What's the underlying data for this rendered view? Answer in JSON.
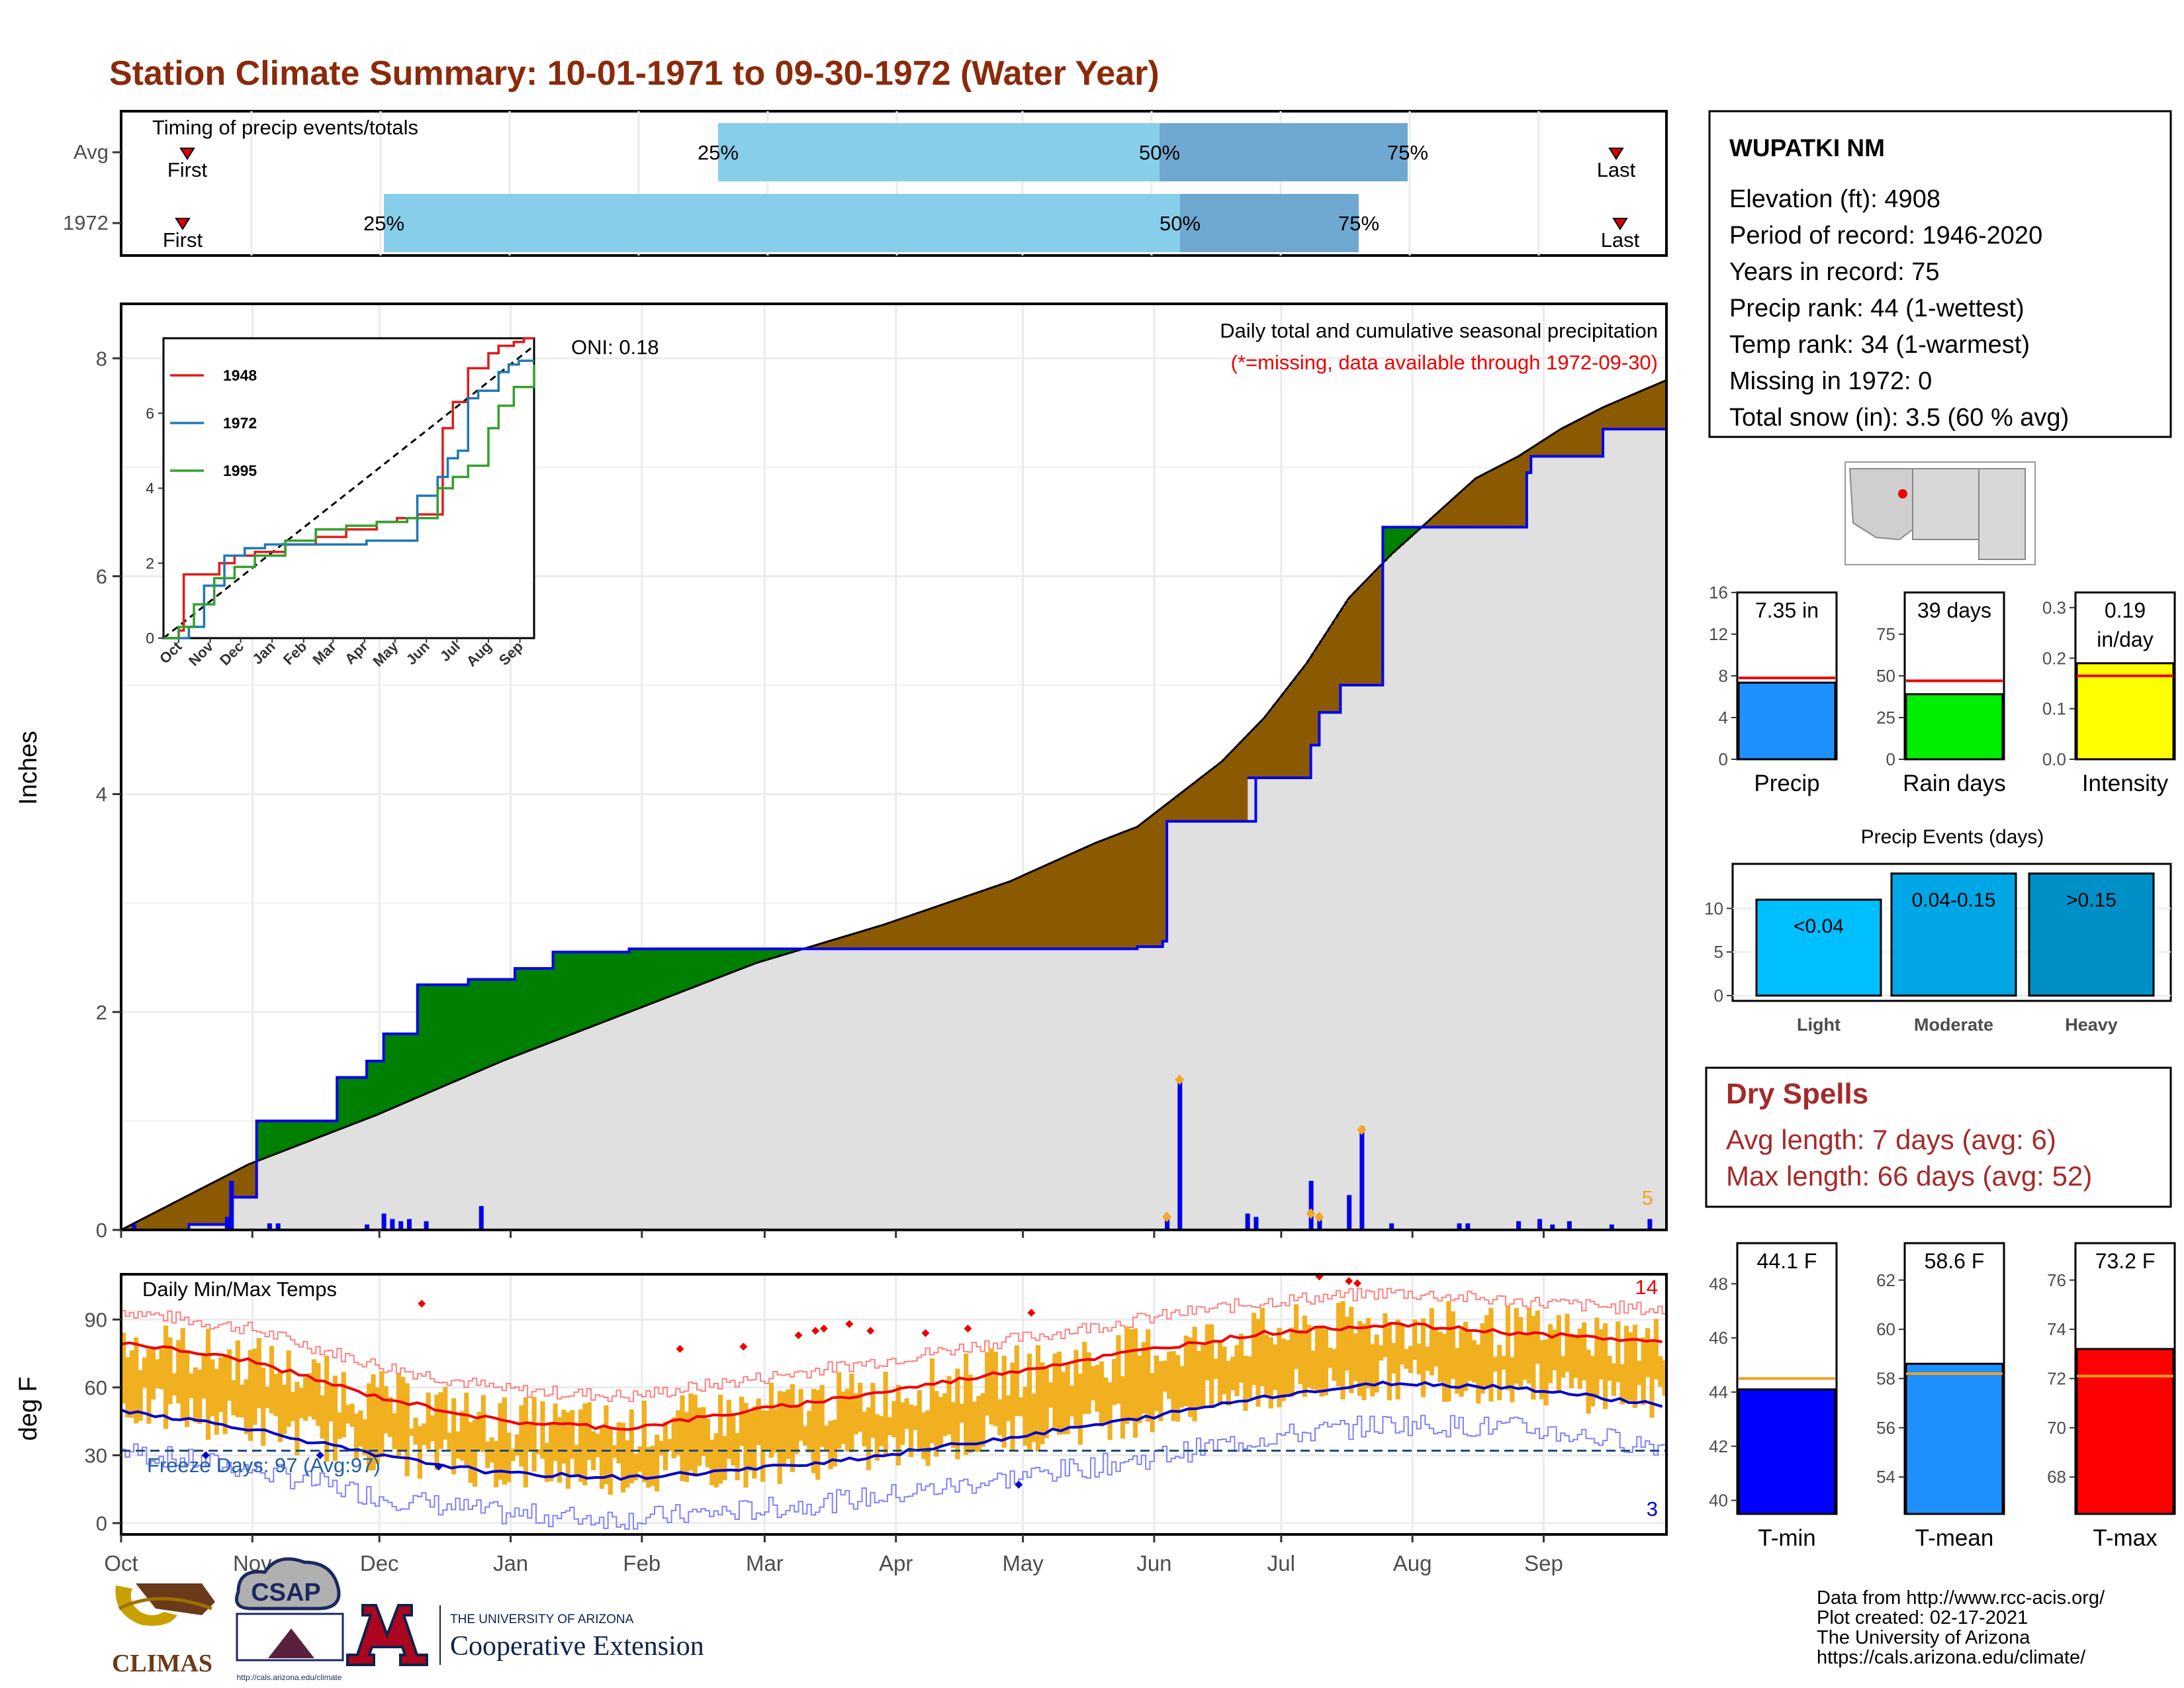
{
  "title": "Station Climate Summary: 10-01-1971 to 09-30-1972 (Water Year)",
  "colors": {
    "title": "#8b2a0a",
    "light_blue": "#87ceeb",
    "mid_blue": "#6fa8d0",
    "green": "#008000",
    "brown": "#8b5a00",
    "gray": "#e0e0e0",
    "blue": "#0000ee",
    "red": "#ee0000",
    "orange": "#f5a623",
    "dry": "#a52a2a"
  },
  "timing": {
    "label": "Timing of precip events/totals",
    "rows": [
      {
        "name": "Avg",
        "first": "First",
        "last": "Last",
        "p25": "25%",
        "p50": "50%",
        "p75": "75%"
      },
      {
        "name": "1972",
        "first": "First",
        "last": "Last",
        "p25": "25%",
        "p50": "50%",
        "p75": "75%"
      }
    ]
  },
  "main": {
    "ylabel": "Inches",
    "yticks": [
      "0",
      "2",
      "4",
      "6",
      "8"
    ],
    "oni": "ONI: 0.18",
    "subtitle": "Daily total and cumulative seasonal precipitation",
    "missing_note": "(*=missing, data available through 1972-09-30)",
    "corner_count": "5",
    "inset": {
      "series": [
        "1948",
        "1972",
        "1995"
      ],
      "yticks": [
        "0",
        "2",
        "4",
        "6"
      ],
      "months": [
        "Oct",
        "Nov",
        "Dec",
        "Jan",
        "Feb",
        "Mar",
        "Apr",
        "May",
        "Jun",
        "Jul",
        "Aug",
        "Sep"
      ]
    }
  },
  "temps": {
    "ylabel": "deg F",
    "label": "Daily Min/Max Temps",
    "yticks": [
      "0",
      "30",
      "60",
      "90"
    ],
    "freeze": "Freeze Days: 97 (Avg:97)",
    "max_count": "14",
    "min_count": "3",
    "months": [
      "Oct",
      "Nov",
      "Dec",
      "Jan",
      "Feb",
      "Mar",
      "Apr",
      "May",
      "Jun",
      "Jul",
      "Aug",
      "Sep"
    ]
  },
  "station": {
    "name": "WUPATKI NM",
    "lines": [
      "Elevation (ft): 4908",
      "Period of record: 1946-2020",
      "Years in record: 75",
      "Precip rank: 44 (1-wettest)",
      "Temp rank: 34 (1-warmest)",
      "Missing in 1972: 0",
      "Total snow (in): 3.5 (60 % avg)"
    ]
  },
  "bars": {
    "precip": {
      "label": "Precip",
      "value_text": "7.35 in",
      "yticks": [
        "0",
        "4",
        "8",
        "12",
        "16"
      ]
    },
    "rain": {
      "label": "Rain days",
      "value_text": "39 days",
      "yticks": [
        "0",
        "25",
        "50",
        "75"
      ]
    },
    "intensity": {
      "label": "Intensity",
      "value_text_1": "0.19",
      "value_text_2": "in/day",
      "yticks": [
        "0.0",
        "0.1",
        "0.2",
        "0.3"
      ]
    }
  },
  "events": {
    "title": "Precip Events (days)",
    "yticks": [
      "0",
      "5",
      "10"
    ],
    "bars": [
      {
        "label": "Light",
        "range": "<0.04"
      },
      {
        "label": "Moderate",
        "range": "0.04-0.15"
      },
      {
        "label": "Heavy",
        "range": ">0.15"
      }
    ]
  },
  "dry": {
    "title": "Dry Spells",
    "avg": "Avg length: 7 days (avg: 6)",
    "max": "Max length: 66 days (avg: 52)"
  },
  "tbars": {
    "tmin": {
      "label": "T-min",
      "value_text": "44.1 F",
      "yticks": [
        "40",
        "42",
        "44",
        "46",
        "48"
      ]
    },
    "tmean": {
      "label": "T-mean",
      "value_text": "58.6 F",
      "yticks": [
        "54",
        "56",
        "58",
        "60",
        "62"
      ]
    },
    "tmax": {
      "label": "T-max",
      "value_text": "73.2 F",
      "yticks": [
        "68",
        "70",
        "72",
        "74",
        "76"
      ]
    }
  },
  "footer": {
    "lines": [
      "Data from http://www.rcc-acis.org/",
      "Plot created: 02-17-2021",
      "The University of Arizona",
      "https://cals.arizona.edu/climate/"
    ],
    "logos": {
      "climas": "CLIMAS",
      "csap": "CSAP",
      "csap_url": "http://cals.arizona.edu/climate",
      "ua_small": "THE UNIVERSITY OF ARIZONA",
      "ua_big": "Cooperative Extension"
    }
  },
  "chart_data": [
    {
      "type": "bar",
      "name": "timing",
      "categories": [
        "Avg",
        "1972"
      ],
      "series": [
        {
          "name": "25%",
          "values": [
            "Feb 20",
            "Dec 1"
          ]
        },
        {
          "name": "50%",
          "values": [
            "Jun 1",
            "Jun 7"
          ]
        },
        {
          "name": "75%",
          "values": [
            "Jul 31",
            "Jul 19"
          ]
        }
      ]
    },
    {
      "type": "area",
      "name": "cumulative_precip",
      "xlabel": "",
      "ylabel": "Inches",
      "ylim": [
        0,
        8.5
      ],
      "series": [
        {
          "name": "1972",
          "x": [
            0,
            16,
            25,
            26,
            32,
            51,
            57,
            58,
            62,
            70,
            82,
            93,
            102,
            112,
            120,
            130,
            142,
            160,
            190,
            215,
            225,
            235,
            240,
            242,
            246,
            247,
            268,
            266,
            281,
            283,
            284,
            288,
            290,
            298,
            302,
            305,
            332,
            333,
            340,
            350,
            365
          ],
          "y": [
            0,
            0.05,
            0.1,
            0.3,
            1.0,
            1.4,
            1.4,
            1.55,
            1.8,
            2.25,
            2.3,
            2.4,
            2.55,
            2.55,
            2.58,
            2.58,
            2.58,
            2.58,
            2.58,
            2.58,
            2.58,
            2.58,
            2.6,
            2.6,
            2.65,
            3.75,
            4.15,
            4.15,
            4.45,
            4.75,
            4.75,
            5.0,
            5.0,
            6.45,
            6.45,
            6.45,
            6.95,
            7.1,
            7.1,
            7.35,
            7.35
          ]
        },
        {
          "name": "Avg",
          "x": [
            0,
            30,
            60,
            90,
            120,
            150,
            180,
            210,
            230,
            240,
            250,
            260,
            270,
            280,
            290,
            300,
            310,
            320,
            330,
            340,
            350,
            365
          ],
          "y": [
            0,
            0.6,
            1.05,
            1.55,
            2.0,
            2.45,
            2.8,
            3.2,
            3.55,
            3.7,
            4.0,
            4.3,
            4.7,
            5.2,
            5.8,
            6.2,
            6.55,
            6.9,
            7.1,
            7.35,
            7.55,
            7.8
          ]
        }
      ]
    },
    {
      "type": "line",
      "name": "daily_temps",
      "ylabel": "deg F",
      "ylim": [
        -5,
        110
      ],
      "series": [
        {
          "name": "Avg max",
          "x": [
            0,
            30,
            60,
            90,
            120,
            150,
            180,
            210,
            240,
            270,
            300,
            330,
            365
          ],
          "y": [
            80,
            72,
            56,
            45,
            42,
            50,
            58,
            67,
            76,
            84,
            88,
            84,
            80
          ]
        },
        {
          "name": "Avg min",
          "x": [
            0,
            30,
            60,
            90,
            120,
            150,
            180,
            210,
            240,
            270,
            300,
            330,
            365
          ],
          "y": [
            50,
            42,
            30,
            22,
            20,
            24,
            30,
            38,
            46,
            56,
            62,
            60,
            52
          ]
        }
      ]
    },
    {
      "type": "bar",
      "name": "summary_precip",
      "categories": [
        "Precip",
        "Rain days",
        "Intensity"
      ],
      "values": [
        7.35,
        39,
        0.19
      ]
    },
    {
      "type": "bar",
      "name": "precip_events",
      "categories": [
        "Light",
        "Moderate",
        "Heavy"
      ],
      "values": [
        11,
        14,
        14
      ]
    },
    {
      "type": "bar",
      "name": "temps_summary",
      "categories": [
        "T-min",
        "T-mean",
        "T-max"
      ],
      "values": [
        44.1,
        58.6,
        73.2
      ]
    }
  ]
}
